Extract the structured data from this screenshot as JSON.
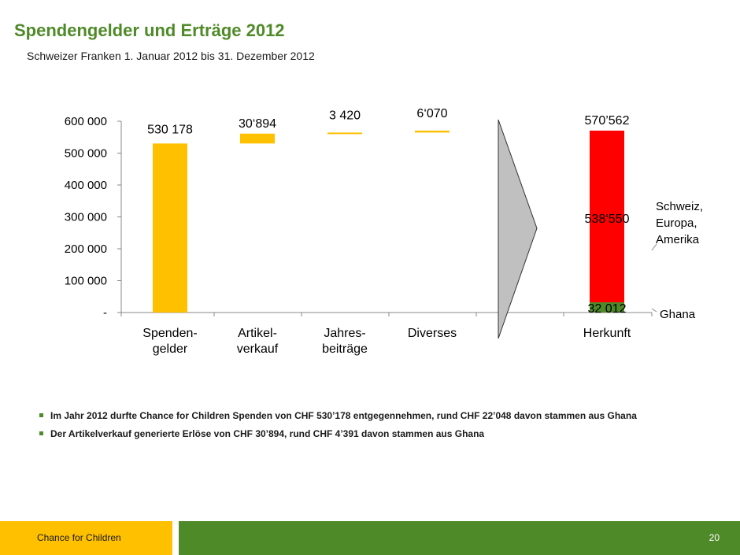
{
  "slide": {
    "title": "Spendengelder und Erträge 2012",
    "subtitle": "Schweizer Franken 1. Januar 2012 bis 31. Dezember 2012"
  },
  "chart_data": {
    "type": "bar",
    "title": "",
    "xlabel": "",
    "ylabel": "",
    "ylim": [
      0,
      600000
    ],
    "yticks": [
      {
        "value": 0,
        "label": "-"
      },
      {
        "value": 100000,
        "label": "100 000"
      },
      {
        "value": 200000,
        "label": "200 000"
      },
      {
        "value": 300000,
        "label": "300 000"
      },
      {
        "value": 400000,
        "label": "400 000"
      },
      {
        "value": 500000,
        "label": "500 000"
      },
      {
        "value": 600000,
        "label": "600 000"
      }
    ],
    "categories": [
      {
        "name": "Spenden-gelder",
        "lines": [
          "Spenden-",
          "gelder"
        ],
        "bottom": 0,
        "top": 530178,
        "label": "530 178",
        "color": "#ffc000",
        "kind": "bar"
      },
      {
        "name": "Artikel-verkauf",
        "lines": [
          "Artikel-",
          "verkauf"
        ],
        "bottom": 530178,
        "top": 561072,
        "label": "30‘894",
        "color": "#ffc000",
        "kind": "bar"
      },
      {
        "name": "Jahres-beiträge",
        "lines": [
          "Jahres-",
          "beiträge"
        ],
        "bottom": 561072,
        "top": 564492,
        "label": "3 420",
        "color": "#ffc000",
        "kind": "bar"
      },
      {
        "name": "Diverses",
        "lines": [
          "Diverses"
        ],
        "bottom": 564492,
        "top": 570562,
        "label": "6‘070",
        "color": "#ffc000",
        "kind": "bar"
      },
      {
        "name": "Herkunft",
        "lines": [
          "Herkunft"
        ],
        "kind": "stack",
        "label": "570’562",
        "segments": [
          {
            "name": "Ghana",
            "value": 32012,
            "label": "32 012",
            "color": "#4f8a28"
          },
          {
            "name": "Schweiz, Europa, Amerika",
            "value": 538550,
            "label": "538‘550",
            "color": "#ff0000"
          }
        ]
      }
    ],
    "legend": [
      {
        "lines": [
          "Schweiz,",
          "Europa,",
          "Amerika"
        ]
      },
      {
        "lines": [
          "Ghana"
        ]
      }
    ],
    "colors": {
      "yellow": "#ffc000",
      "red": "#ff0000",
      "green": "#4f8a28",
      "arrow": "#c0c0c0"
    }
  },
  "bullets": [
    "Im Jahr 2012 durfte Chance for Children Spenden von CHF 530’178 entgegennehmen, rund CHF 22’048 davon stammen aus Ghana",
    "Der Artikelverkauf generierte Erlöse von CHF 30’894, rund CHF 4’391 davon stammen aus Ghana"
  ],
  "footer": {
    "org": "Chance for Children",
    "page": "20",
    "colors": {
      "left": "#ffc000",
      "right": "#4f8a28"
    }
  }
}
